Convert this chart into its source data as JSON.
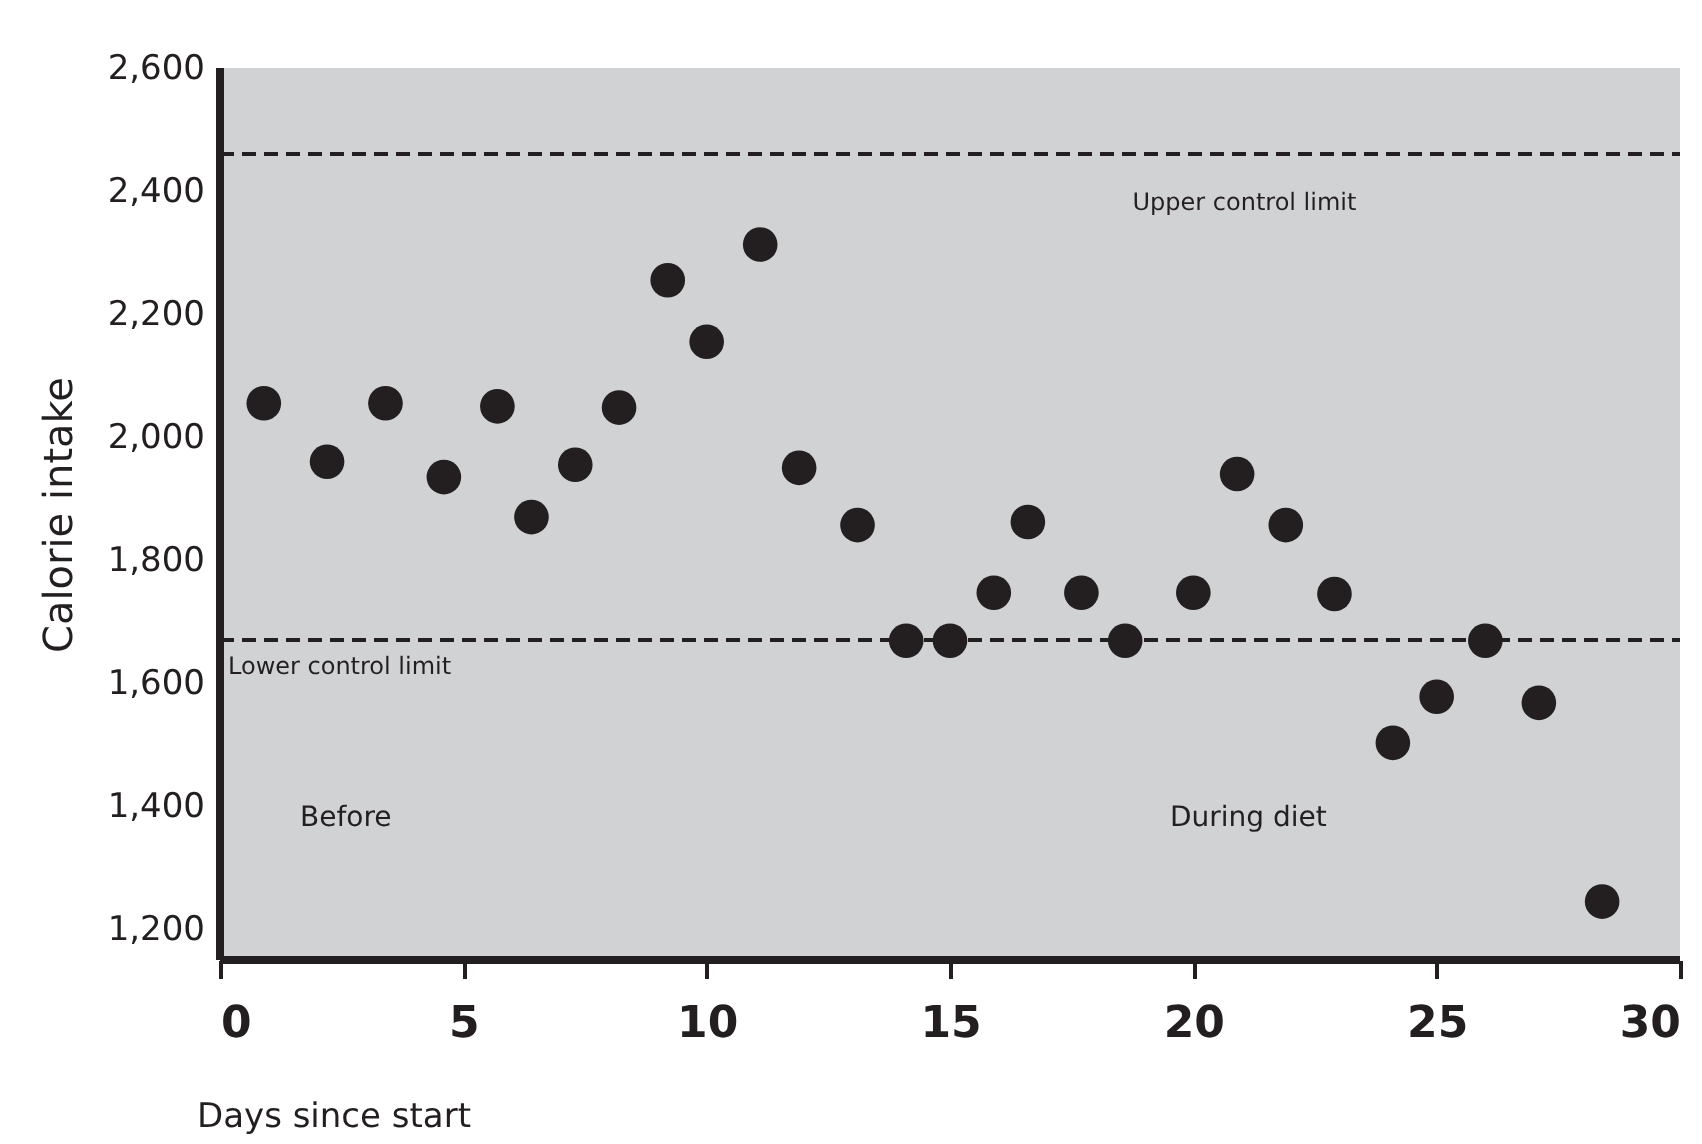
{
  "chart_data": {
    "type": "scatter",
    "xlabel": "Days since start",
    "ylabel": "Calorie intake",
    "x": [
      0.9,
      2.2,
      3.4,
      4.6,
      5.7,
      6.4,
      7.3,
      8.2,
      9.2,
      10.0,
      11.1,
      11.9,
      13.1,
      14.1,
      15.0,
      15.9,
      16.6,
      17.7,
      18.6,
      20.0,
      20.9,
      21.9,
      22.9,
      24.1,
      25.0,
      26.0,
      27.1,
      28.4
    ],
    "series": [
      {
        "color": "#231f20",
        "values": [
          2055,
          1960,
          2055,
          1935,
          2050,
          1870,
          1955,
          2048,
          2255,
          2155,
          2313,
          1950,
          1857,
          1669,
          1669,
          1747,
          1862,
          1747,
          1669,
          1747,
          1940,
          1857,
          1745,
          1503,
          1578,
          1669,
          1568,
          1245
        ]
      }
    ],
    "marker": "circle",
    "xlim": [
      0,
      30
    ],
    "xticks": [
      0,
      5,
      10,
      15,
      20,
      25,
      30
    ],
    "ylim": [
      1150,
      2600
    ],
    "yticks": [
      {
        "value": 1200,
        "label": "1,200"
      },
      {
        "value": 1400,
        "label": "1,400"
      },
      {
        "value": 1600,
        "label": "1,600"
      },
      {
        "value": 1800,
        "label": "1,800"
      },
      {
        "value": 2000,
        "label": "2,000"
      },
      {
        "value": 2200,
        "label": "2,200"
      },
      {
        "value": 2400,
        "label": "2,400"
      },
      {
        "value": 2600,
        "label": "2,600"
      }
    ],
    "ref_lines": [
      {
        "axis": "y",
        "value": 2460,
        "label": "Upper control limit",
        "color": "#231f20",
        "line_style": "dashed"
      },
      {
        "axis": "y",
        "value": 1670,
        "label": "Lower control limit",
        "color": "#231f20",
        "line_style": "dashed"
      }
    ],
    "annotations": [
      "Before",
      "During diet"
    ],
    "grid": false
  }
}
